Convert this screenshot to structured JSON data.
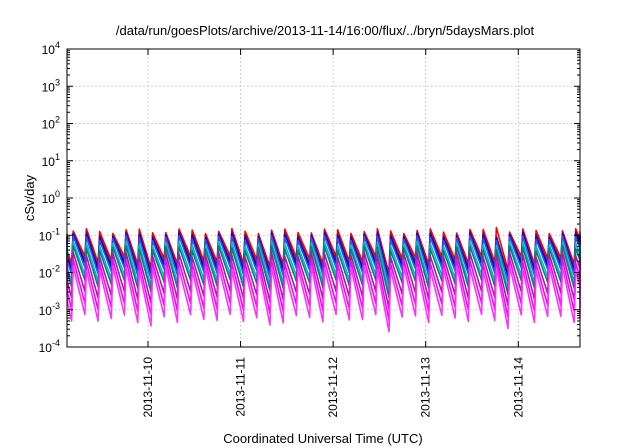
{
  "chart_data": {
    "type": "line",
    "title": "/data/run/goesPlots/archive/2013-11-14/16:00/flux/../bryn/5daysMars.plot",
    "xlabel": "Coordinated Universal Time (UTC)",
    "ylabel": "cSv/day",
    "y_scale": "log",
    "ylim": [
      0.0001,
      10000
    ],
    "y_ticks": [
      {
        "value": 0.0001,
        "base": "10",
        "exp": "-4"
      },
      {
        "value": 0.001,
        "base": "10",
        "exp": "-3"
      },
      {
        "value": 0.01,
        "base": "10",
        "exp": "-2"
      },
      {
        "value": 0.1,
        "base": "10",
        "exp": "-1"
      },
      {
        "value": 1,
        "base": "10",
        "exp": "0"
      },
      {
        "value": 10,
        "base": "10",
        "exp": "1"
      },
      {
        "value": 100,
        "base": "10",
        "exp": "2"
      },
      {
        "value": 1000,
        "base": "10",
        "exp": "3"
      },
      {
        "value": 10000,
        "base": "10",
        "exp": "4"
      }
    ],
    "x_range_days": [
      "2013-11-09T03:00",
      "2013-11-14T16:00"
    ],
    "x_ticks": [
      "2013-11-10",
      "2013-11-11",
      "2013-11-12",
      "2013-11-13",
      "2013-11-14"
    ],
    "grid": true,
    "legend": "none",
    "pattern": {
      "description_values": "sawtooth flux rising sharply then decaying, about 7 cycles per day",
      "cycles_per_day": 7,
      "peak_max": 0.13,
      "trough_min": 0.0006
    },
    "series": [
      {
        "color": "#ff0000",
        "peak": 0.13,
        "trough": 0.022,
        "spike": {
          "at": "2013-11-13T17:00",
          "value": 0.16
        }
      },
      {
        "color": "#8b1a1a",
        "peak": 0.11,
        "trough": 0.017
      },
      {
        "color": "#0000ff",
        "peak": 0.1,
        "trough": 0.014
      },
      {
        "color": "#3355dd",
        "peak": 0.085,
        "trough": 0.011
      },
      {
        "color": "#00bfbf",
        "peak": 0.06,
        "trough": 0.007
      },
      {
        "color": "#008080",
        "peak": 0.045,
        "trough": 0.005
      },
      {
        "color": "#a020a0",
        "peak": 0.03,
        "trough": 0.0025
      },
      {
        "color": "#ff00ff",
        "peak": 0.02,
        "trough": 0.0012
      },
      {
        "color": "#ff33ff",
        "peak": 0.013,
        "trough": 0.0006
      }
    ]
  }
}
